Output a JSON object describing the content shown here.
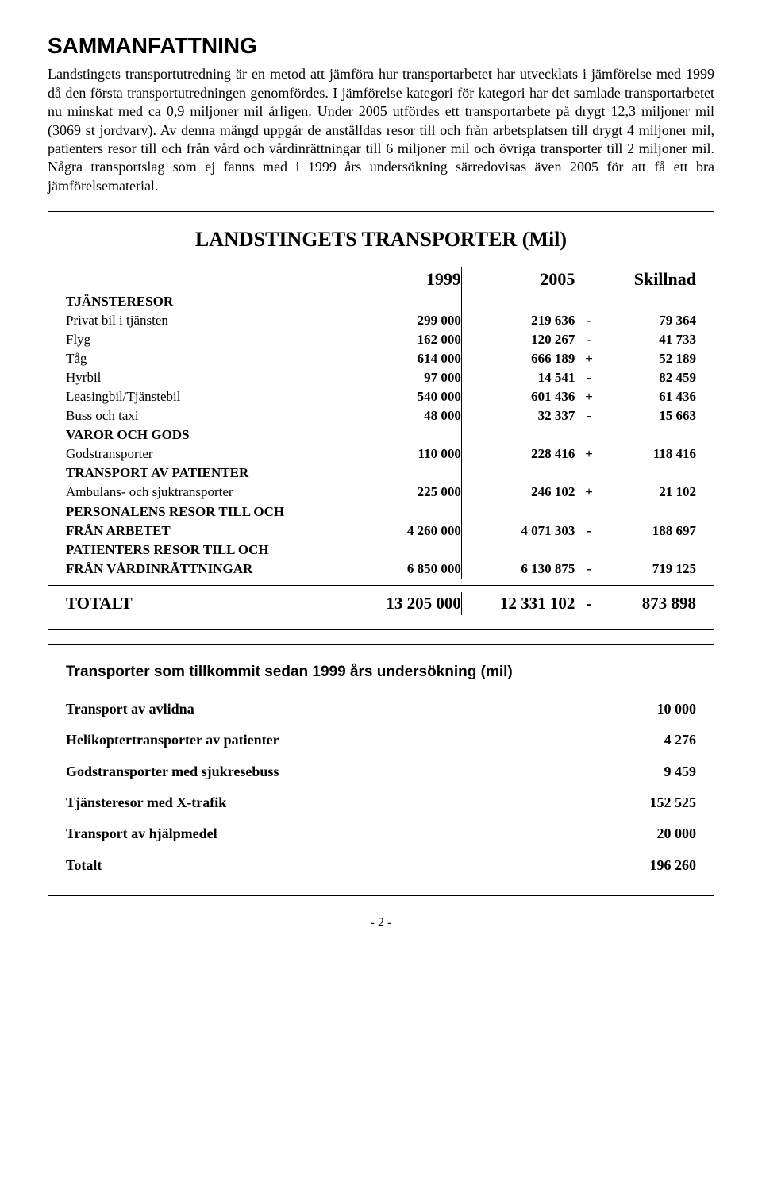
{
  "title": "SAMMANFATTNING",
  "paragraph": "Landstingets transportutredning är en metod att jämföra hur transportarbetet har utvecklats i jämförelse med 1999 då den första transportutredningen genomfördes. I jämförelse kategori för kategori har det samlade transportarbetet nu minskat med ca 0,9 miljoner mil årligen. Under 2005 utfördes ett transportarbete på drygt 12,3 miljoner mil (3069 st jordvarv). Av denna mängd uppgår de anställdas resor till och från arbetsplatsen till drygt 4 miljoner mil, patienters resor till och från vård och vårdinrättningar till 6 miljoner mil och övriga transporter till 2 miljoner mil. Några transportslag som ej fanns med i 1999 års undersökning särredovisas även 2005 för att få ett bra jämförelsematerial.",
  "box1": {
    "title": "LANDSTINGETS TRANSPORTER (Mil)",
    "headers": {
      "c1": "1999",
      "c2": "2005",
      "c3": "Skillnad"
    },
    "sections": [
      {
        "head": "TJÄNSTERESOR",
        "rows": [
          {
            "label": "Privat bil i tjänsten",
            "v1": "299 000",
            "v2": "219 636",
            "sign": "-",
            "diff": "79 364"
          },
          {
            "label": "Flyg",
            "v1": "162 000",
            "v2": "120 267",
            "sign": "-",
            "diff": "41 733"
          },
          {
            "label": "Tåg",
            "v1": "614 000",
            "v2": "666 189",
            "sign": "+",
            "diff": "52 189"
          },
          {
            "label": "Hyrbil",
            "v1": "97 000",
            "v2": "14 541",
            "sign": "-",
            "diff": "82 459"
          },
          {
            "label": "Leasingbil/Tjänstebil",
            "v1": "540 000",
            "v2": "601 436",
            "sign": "+",
            "diff": "61 436"
          },
          {
            "label": "Buss och taxi",
            "v1": "48 000",
            "v2": "32 337",
            "sign": "-",
            "diff": "15 663"
          }
        ]
      },
      {
        "head": "VAROR OCH GODS",
        "rows": [
          {
            "label": "Godstransporter",
            "v1": "110 000",
            "v2": "228 416",
            "sign": "+",
            "diff": "118 416"
          }
        ]
      },
      {
        "head": "TRANSPORT AV PATIENTER",
        "rows": [
          {
            "label": "Ambulans- och sjuktransporter",
            "v1": "225 000",
            "v2": "246 102",
            "sign": "+",
            "diff": "21 102"
          }
        ]
      },
      {
        "head": "PERSONALENS RESOR TILL OCH",
        "rows": [
          {
            "label": "FRÅN ARBETET",
            "v1": "4 260 000",
            "v2": "4 071 303",
            "sign": "-",
            "diff": "188 697"
          }
        ]
      },
      {
        "head": "PATIENTERS RESOR TILL OCH",
        "rows": [
          {
            "label": "FRÅN VÅRDINRÄTTNINGAR",
            "v1": "6 850 000",
            "v2": "6 130 875",
            "sign": "-",
            "diff": "719 125"
          }
        ]
      }
    ],
    "total": {
      "label": "TOTALT",
      "v1": "13 205 000",
      "v2": "12 331 102",
      "sign": "-",
      "diff": "873 898"
    }
  },
  "box2": {
    "title": "Transporter som tillkommit sedan 1999 års undersökning (mil)",
    "rows": [
      {
        "label": "Transport av avlidna",
        "value": "10 000"
      },
      {
        "label": "Helikoptertransporter av patienter",
        "value": "4 276"
      },
      {
        "label": "Godstransporter med sjukresebuss",
        "value": "9 459"
      },
      {
        "label": "Tjänsteresor med X-trafik",
        "value": "152 525"
      },
      {
        "label": "Transport av hjälpmedel",
        "value": "20 000"
      },
      {
        "label": "Totalt",
        "value": "196 260"
      }
    ]
  },
  "page_number": "- 2 -"
}
